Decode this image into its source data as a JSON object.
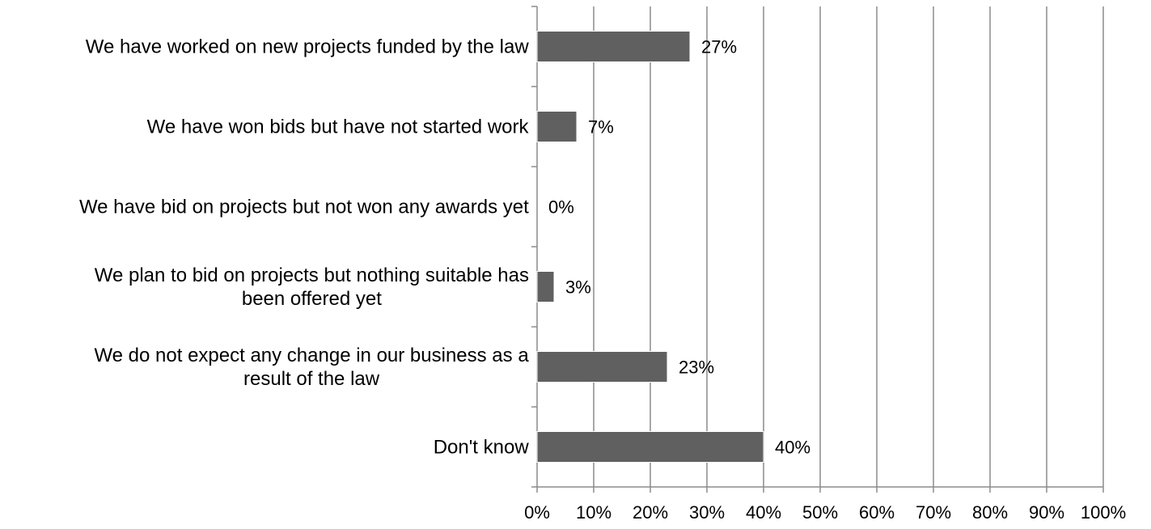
{
  "chart_data": {
    "type": "bar",
    "orientation": "horizontal",
    "categories": [
      "We have worked on new projects funded by the law",
      "We have won bids but have not started work",
      "We have bid on projects but not won any awards yet",
      "We plan to bid on projects but nothing suitable has been offered yet",
      "We do not expect any change in our business as a result of the law",
      "Don't know"
    ],
    "category_lines": [
      [
        "We have worked on new projects funded by the law"
      ],
      [
        "We have won bids but have not started work"
      ],
      [
        "We have bid on projects but not won any awards yet"
      ],
      [
        "We plan to bid on projects but nothing suitable has",
        "been offered yet"
      ],
      [
        "We do not expect any change in our business as a",
        "result of the law"
      ],
      [
        "Don't know"
      ]
    ],
    "values": [
      27,
      7,
      0,
      3,
      23,
      40
    ],
    "data_labels": [
      "27%",
      "7%",
      "0%",
      "3%",
      "23%",
      "40%"
    ],
    "xlim": [
      0,
      100
    ],
    "x_ticks": [
      0,
      10,
      20,
      30,
      40,
      50,
      60,
      70,
      80,
      90,
      100
    ],
    "x_tick_labels": [
      "0%",
      "10%",
      "20%",
      "30%",
      "40%",
      "50%",
      "60%",
      "70%",
      "80%",
      "90%",
      "100%"
    ],
    "grid": "vertical",
    "legend": "none",
    "colors": {
      "bar": "#606060",
      "grid": "#8c8c8c",
      "axis": "#8c8c8c",
      "text": "#000000"
    }
  }
}
